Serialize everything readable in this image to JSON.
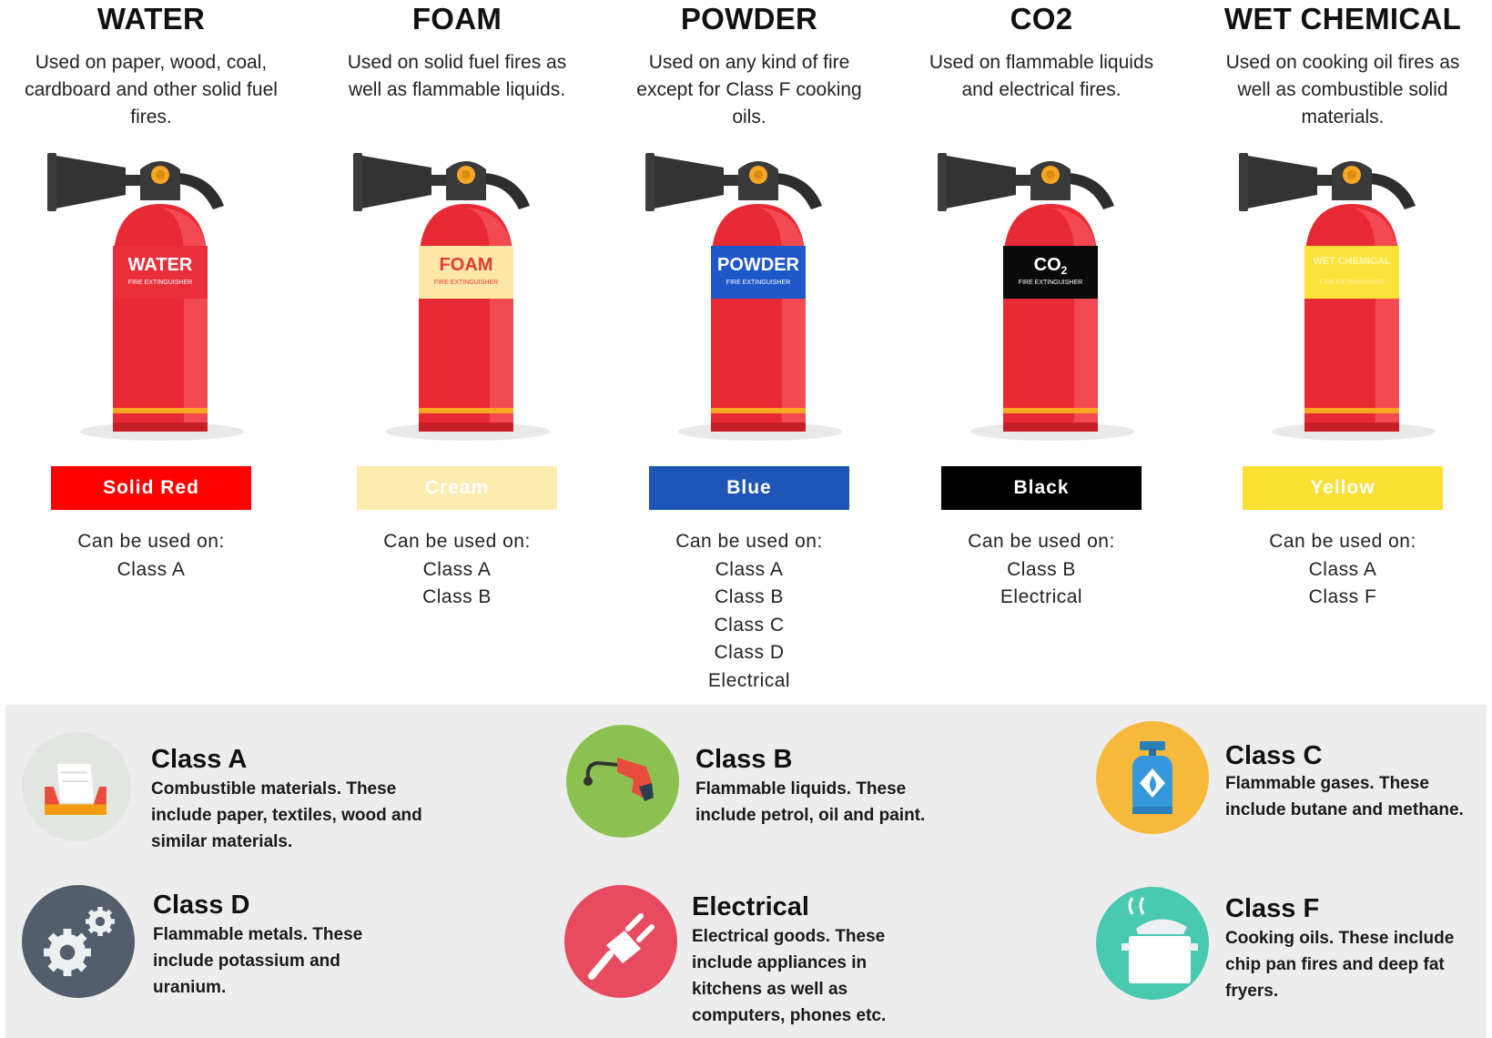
{
  "extinguishers": [
    {
      "title": "WATER",
      "description": "Used on paper, wood, coal, cardboard and other solid fuel fires.",
      "label_main": "WATER",
      "label_sub": "FIRE EXTINGUISHER",
      "label_color": "#e82f3a",
      "label_text_color": "#ffffff",
      "swatch_label": "Solid Red",
      "swatch_color": "#ff0000",
      "swatch_text_color": "#ffffff",
      "used_on_heading": "Can be used on:",
      "used_on": [
        "Class A"
      ]
    },
    {
      "title": "FOAM",
      "description": "Used on solid fuel fires as well as flammable liquids.",
      "label_main": "FOAM",
      "label_sub": "FIRE EXTINGUISHER",
      "label_color": "#fde7a8",
      "label_text_color": "#e53935",
      "swatch_label": "Cream",
      "swatch_color": "#fcecb0",
      "swatch_text_color": "#ffffff",
      "used_on_heading": "Can be used on:",
      "used_on": [
        "Class A",
        "Class B"
      ]
    },
    {
      "title": "POWDER",
      "description": "Used on any kind of fire except for Class F cooking oils.",
      "label_main": "POWDER",
      "label_sub": "FIRE EXTINGUISHER",
      "label_color": "#1e57c8",
      "label_text_color": "#ffffff",
      "swatch_label": "Blue",
      "swatch_color": "#1f55b6",
      "swatch_text_color": "#ffffff",
      "used_on_heading": "Can be used on:",
      "used_on": [
        "Class A",
        "Class B",
        "Class C",
        "Class D",
        "Electrical"
      ]
    },
    {
      "title": "CO2",
      "description": "Used on flammable liquids and electrical fires.",
      "label_main": "CO",
      "label_main_sub": "2",
      "label_sub": "FIRE EXTINGUISHER",
      "label_color": "#0a0a0a",
      "label_text_color": "#ffffff",
      "swatch_label": "Black",
      "swatch_color": "#000000",
      "swatch_text_color": "#ffffff",
      "used_on_heading": "Can be used on:",
      "used_on": [
        "Class B",
        "Electrical"
      ]
    },
    {
      "title": "WET CHEMICAL",
      "description": "Used on cooking oil fires as well as combustible solid materials.",
      "label_main": "WET CHEMICAL",
      "label_sub": "FIRE EXTINGUISHER",
      "label_color": "#fde23a",
      "label_text_color": "#fff5b0",
      "swatch_label": "Yellow",
      "swatch_color": "#fde033",
      "swatch_text_color": "#ffffff",
      "used_on_heading": "Can be used on:",
      "used_on": [
        "Class A",
        "Class F"
      ]
    }
  ],
  "fire_classes": [
    {
      "title": "Class A",
      "description": "Combustible materials. These include paper, textiles, wood and similar materials.",
      "icon": "paper-tray-icon",
      "icon_bg": "#e2e6e1"
    },
    {
      "title": "Class B",
      "description": "Flammable liquids. These include petrol, oil and paint.",
      "icon": "fuel-nozzle-icon",
      "icon_bg": "#8cc152"
    },
    {
      "title": "Class C",
      "description": "Flammable gases. These include butane and methane.",
      "icon": "gas-cylinder-icon",
      "icon_bg": "#f6b93b"
    },
    {
      "title": "Class D",
      "description": "Flammable metals. These include potassium and uranium.",
      "icon": "gears-icon",
      "icon_bg": "#535e6d"
    },
    {
      "title": "Electrical",
      "description": "Electrical goods. These include appliances in kitchens as well as computers, phones etc.",
      "icon": "electric-plug-icon",
      "icon_bg": "#e84a5f"
    },
    {
      "title": "Class F",
      "description": "Cooking oils. These include chip pan fires and deep fat fryers.",
      "icon": "cooking-pot-icon",
      "icon_bg": "#48c9b0"
    }
  ]
}
